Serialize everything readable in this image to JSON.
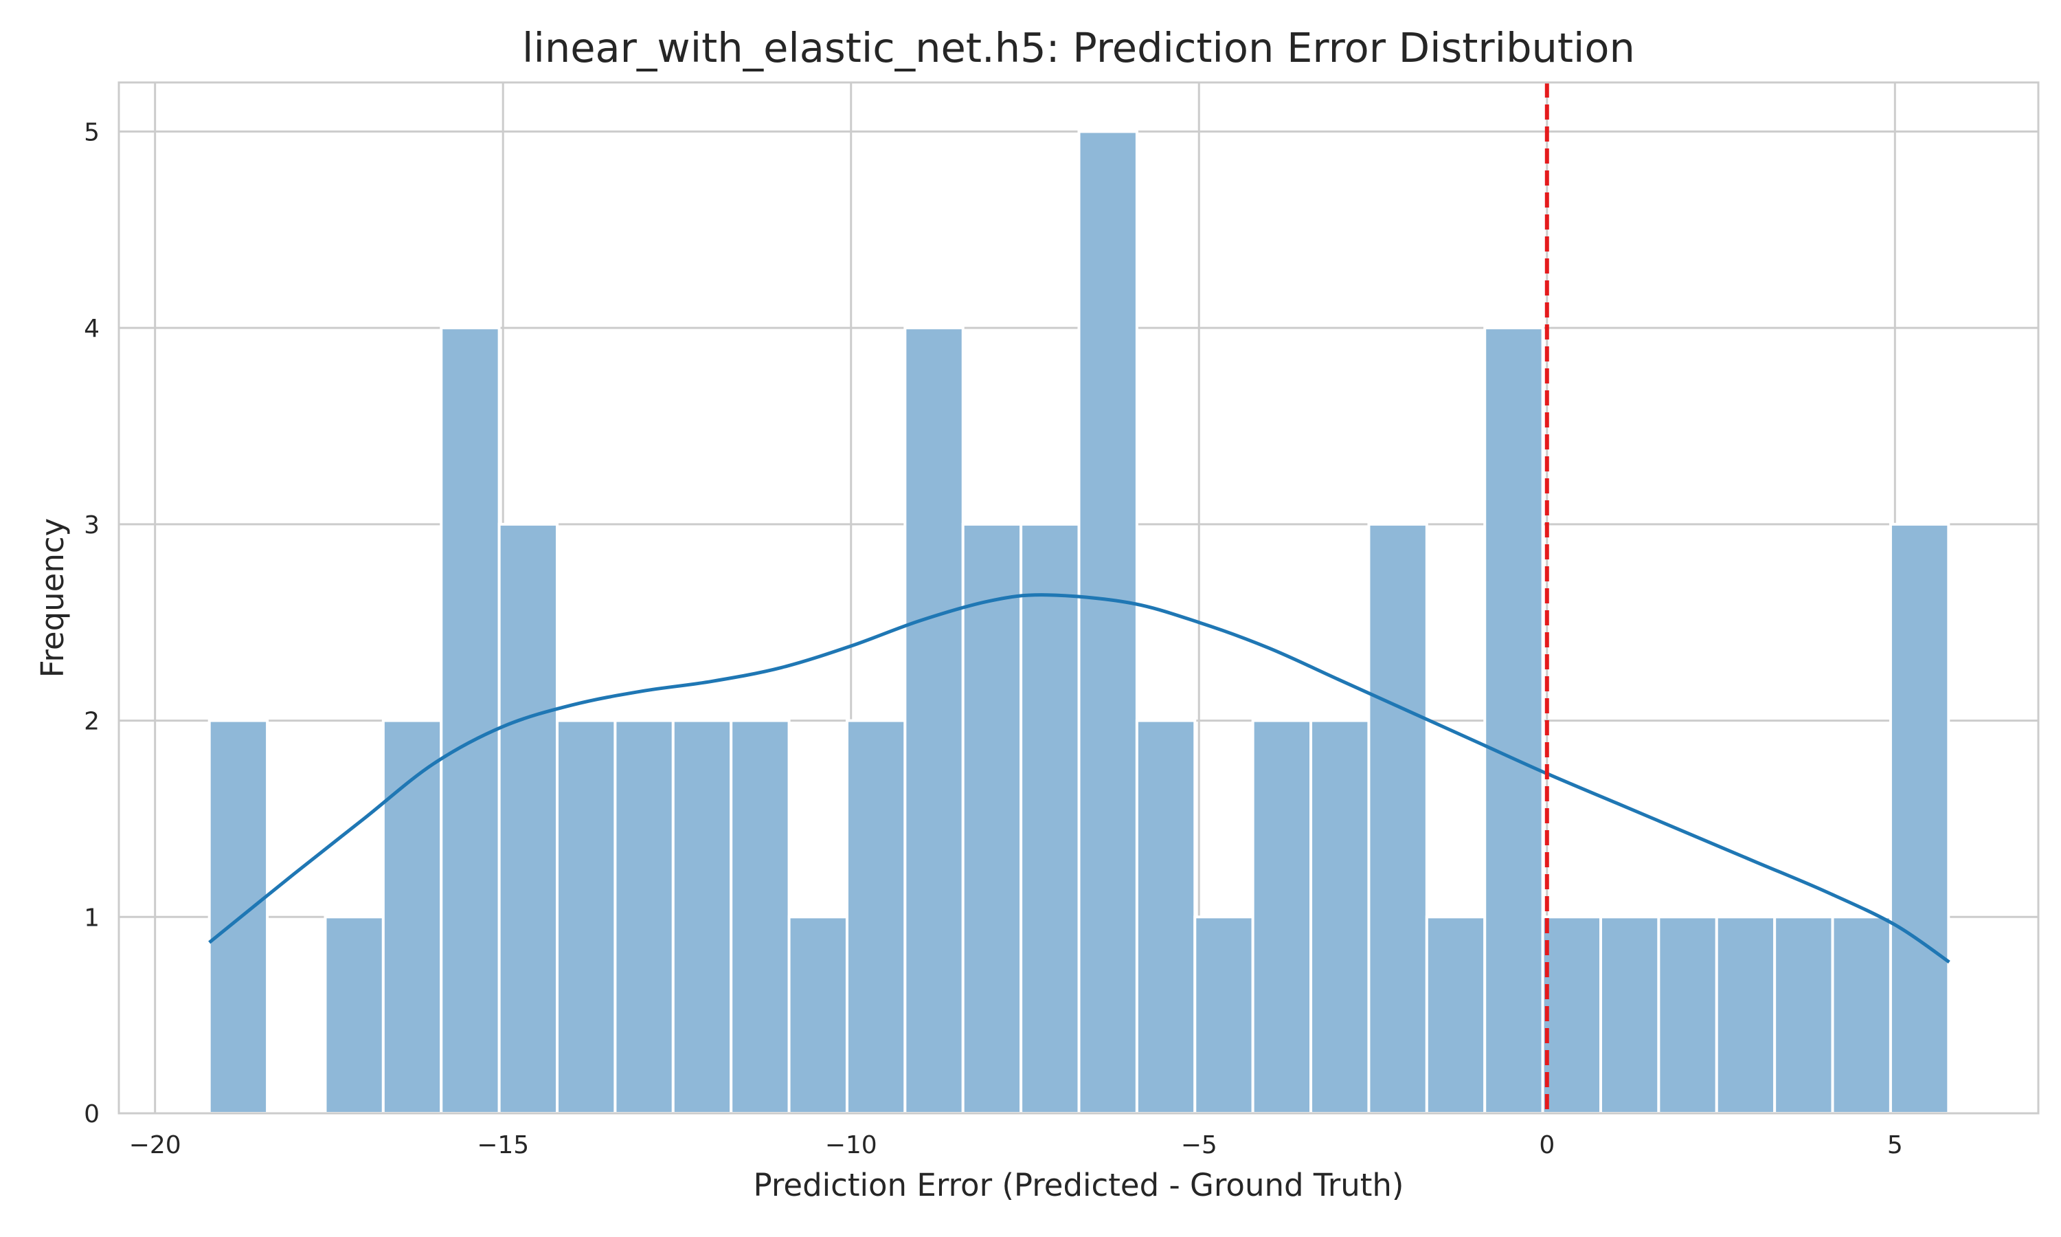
{
  "chart_data": {
    "type": "bar",
    "title": "linear_with_elastic_net.h5: Prediction Error Distribution",
    "xlabel": "Prediction Error (Predicted - Ground Truth)",
    "ylabel": "Frequency",
    "xlim": [
      -20.52,
      7.06
    ],
    "ylim": [
      0,
      5.25
    ],
    "grid": true,
    "x_ticks": [
      -20,
      -15,
      -10,
      -5,
      0,
      5
    ],
    "x_tick_labels": [
      "−20",
      "−15",
      "−10",
      "−5",
      "0",
      "5"
    ],
    "y_ticks": [
      0,
      1,
      2,
      3,
      4,
      5
    ],
    "y_tick_labels": [
      "0",
      "1",
      "2",
      "3",
      "4",
      "5"
    ],
    "bins": {
      "start": -19.22,
      "width": 0.833,
      "counts": [
        2,
        0,
        1,
        2,
        4,
        3,
        2,
        2,
        2,
        2,
        1,
        2,
        4,
        3,
        3,
        5,
        2,
        1,
        2,
        2,
        3,
        1,
        4,
        1,
        1,
        1,
        1,
        1,
        1,
        3
      ]
    },
    "bar_color": "#8fb8d8",
    "kde": {
      "color": "#1f77b4",
      "x": [
        -19.22,
        -18.0,
        -17.0,
        -16.0,
        -15.0,
        -14.0,
        -13.0,
        -12.0,
        -11.0,
        -10.0,
        -9.0,
        -8.0,
        -7.2,
        -6.0,
        -5.0,
        -4.0,
        -3.0,
        -2.0,
        -1.0,
        0.0,
        1.0,
        2.0,
        3.0,
        4.0,
        5.0,
        5.78
      ],
      "y": [
        0.87,
        1.22,
        1.5,
        1.78,
        1.97,
        2.08,
        2.15,
        2.2,
        2.27,
        2.38,
        2.51,
        2.61,
        2.64,
        2.6,
        2.5,
        2.37,
        2.21,
        2.05,
        1.89,
        1.73,
        1.58,
        1.43,
        1.28,
        1.13,
        0.96,
        0.77
      ]
    },
    "reference_line": {
      "x": 0,
      "color": "#e41a1c",
      "style": "dashed"
    }
  }
}
